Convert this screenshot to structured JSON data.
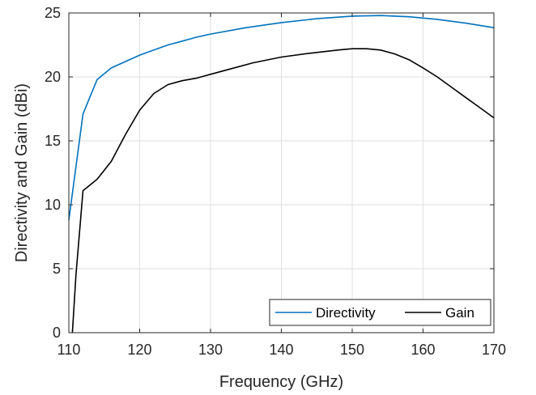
{
  "chart_data": {
    "type": "line",
    "xlabel": "Frequency (GHz)",
    "ylabel": "Directivity and Gain (dBi)",
    "xlim": [
      110,
      170
    ],
    "ylim": [
      0,
      25
    ],
    "xticks": [
      "110",
      "120",
      "130",
      "140",
      "150",
      "160",
      "170"
    ],
    "yticks": [
      "0",
      "5",
      "10",
      "15",
      "20",
      "25"
    ],
    "grid": true,
    "legend_position": "bottom-right",
    "legend_orientation": "horizontal",
    "series": [
      {
        "name": "Directivity",
        "color": "#0072BD",
        "x": [
          110,
          112,
          114,
          116,
          118,
          120,
          122,
          124,
          126,
          128,
          130,
          135,
          140,
          145,
          150,
          154,
          158,
          162,
          166,
          170
        ],
        "y": [
          8.8,
          17.1,
          19.8,
          20.7,
          21.2,
          21.7,
          22.1,
          22.5,
          22.8,
          23.1,
          23.35,
          23.85,
          24.25,
          24.55,
          24.75,
          24.8,
          24.7,
          24.5,
          24.2,
          23.85
        ]
      },
      {
        "name": "Gain",
        "color": "#000000",
        "x": [
          110.5,
          111,
          112,
          114,
          116,
          118,
          120,
          122,
          124,
          126,
          128,
          130,
          133,
          136,
          140,
          144,
          148,
          150,
          152,
          154,
          156,
          158,
          160,
          162,
          164,
          166,
          168,
          170
        ],
        "y": [
          0,
          4.5,
          11.1,
          12.0,
          13.4,
          15.5,
          17.4,
          18.7,
          19.4,
          19.7,
          19.9,
          20.2,
          20.65,
          21.1,
          21.55,
          21.85,
          22.1,
          22.2,
          22.2,
          22.1,
          21.8,
          21.35,
          20.7,
          20.0,
          19.2,
          18.4,
          17.6,
          16.8
        ]
      }
    ]
  }
}
